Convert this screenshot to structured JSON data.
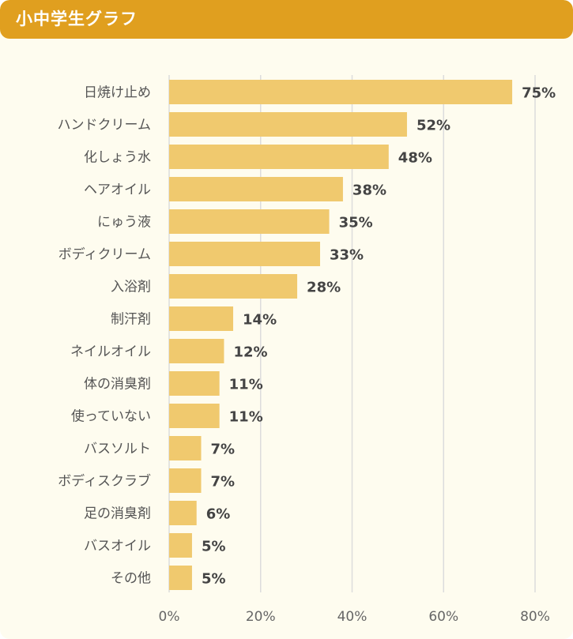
{
  "header": {
    "title": "小中学生グラフ"
  },
  "colors": {
    "header_bg": "#e09f1f",
    "card_bg": "#fefcef",
    "bar": "#f0c96e",
    "grid": "#dcdcdc"
  },
  "chart_data": {
    "type": "bar",
    "orientation": "horizontal",
    "title": "小中学生グラフ",
    "xlabel": "",
    "ylabel": "",
    "xlim": [
      0,
      80
    ],
    "value_suffix": "%",
    "ticks": [
      {
        "value": 0,
        "label": "0%"
      },
      {
        "value": 20,
        "label": "20%"
      },
      {
        "value": 40,
        "label": "40%"
      },
      {
        "value": 60,
        "label": "60%"
      },
      {
        "value": 80,
        "label": "80%"
      }
    ],
    "grid": true,
    "categories": [
      "日焼け止め",
      "ハンドクリーム",
      "化しょう水",
      "ヘアオイル",
      "にゅう液",
      "ボディクリーム",
      "入浴剤",
      "制汗剤",
      "ネイルオイル",
      "体の消臭剤",
      "使っていない",
      "バスソルト",
      "ボディスクラブ",
      "足の消臭剤",
      "バスオイル",
      "その他"
    ],
    "values": [
      75,
      52,
      48,
      38,
      35,
      33,
      28,
      14,
      12,
      11,
      11,
      7,
      7,
      6,
      5,
      5
    ],
    "value_labels": [
      "75%",
      "52%",
      "48%",
      "38%",
      "35%",
      "33%",
      "28%",
      "14%",
      "12%",
      "11%",
      "11%",
      "7%",
      "7%",
      "6%",
      "5%",
      "5%"
    ]
  }
}
